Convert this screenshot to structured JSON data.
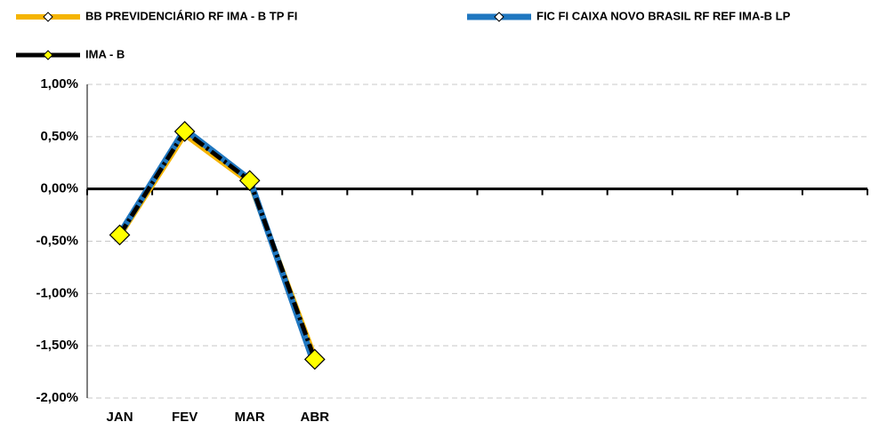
{
  "chart_data": {
    "type": "line",
    "categories": [
      "JAN",
      "FEV",
      "MAR",
      "ABR",
      null,
      null,
      null,
      null,
      null,
      null,
      null,
      null
    ],
    "series": [
      {
        "name": "BB PREVIDENCIÁRIO RF IMA - B TP FI",
        "color": "#f5b400",
        "values": [
          -0.45,
          0.52,
          0.06,
          -1.61,
          null,
          null,
          null,
          null,
          null,
          null,
          null,
          null
        ]
      },
      {
        "name": "FIC FI CAIXA NOVO BRASIL RF REF IMA-B LP",
        "color": "#1f77c0",
        "values": [
          -0.43,
          0.57,
          0.09,
          -1.69,
          null,
          null,
          null,
          null,
          null,
          null,
          null,
          null
        ]
      },
      {
        "name": "IMA - B",
        "color": "#000000",
        "values": [
          -0.44,
          0.55,
          0.08,
          -1.63,
          null,
          null,
          null,
          null,
          null,
          null,
          null,
          null
        ]
      }
    ],
    "ylim": [
      -2,
      1
    ],
    "yticks": [
      {
        "value": -2,
        "label": "-2,00%"
      },
      {
        "value": -1.5,
        "label": "-1,50%"
      },
      {
        "value": -1,
        "label": "-1,00%"
      },
      {
        "value": -0.5,
        "label": "-0,50%"
      },
      {
        "value": 0,
        "label": "0,00%"
      },
      {
        "value": 0.5,
        "label": "0,50%"
      },
      {
        "value": 1,
        "label": "1,00%"
      }
    ],
    "grid": true
  }
}
